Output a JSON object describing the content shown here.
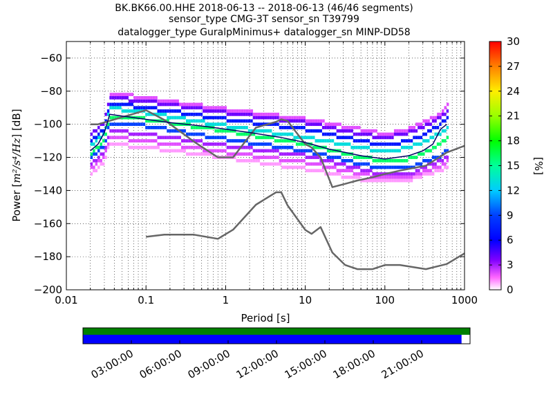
{
  "chart_data": {
    "type": "heatmap",
    "title_lines": [
      "BK.BK66.00.HHE   2018-06-13 -- 2018-06-13  (46/46 segments)",
      "sensor_type CMG-3T sensor_sn T39799",
      "datalogger_type GuralpMinimus+ datalogger_sn MINP-DD58"
    ],
    "xlabel": "Period [s]",
    "ylabel_prefix": "Power [",
    "ylabel_math": "m²/s⁴/Hz",
    "ylabel_suffix": "] [dB]",
    "x_scale": "log",
    "xlim": [
      0.01,
      1000
    ],
    "ylim": [
      -200,
      -50
    ],
    "x_ticks": [
      {
        "value": 0.01,
        "label": "0.01"
      },
      {
        "value": 0.1,
        "label": "0.1"
      },
      {
        "value": 1,
        "label": "1"
      },
      {
        "value": 10,
        "label": "10"
      },
      {
        "value": 100,
        "label": "100"
      },
      {
        "value": 1000,
        "label": "1000"
      }
    ],
    "y_ticks": [
      {
        "value": -60,
        "label": "−60"
      },
      {
        "value": -80,
        "label": "−80"
      },
      {
        "value": -100,
        "label": "−100"
      },
      {
        "value": -120,
        "label": "−120"
      },
      {
        "value": -140,
        "label": "−140"
      },
      {
        "value": -160,
        "label": "−160"
      },
      {
        "value": -180,
        "label": "−180"
      },
      {
        "value": -200,
        "label": "−200"
      }
    ],
    "grid": true,
    "colorbar": {
      "label": "[%]",
      "range": [
        0,
        30
      ],
      "ticks": [
        {
          "value": 0,
          "label": "0"
        },
        {
          "value": 3,
          "label": "3"
        },
        {
          "value": 6,
          "label": "6"
        },
        {
          "value": 9,
          "label": "9"
        },
        {
          "value": 12,
          "label": "12"
        },
        {
          "value": 15,
          "label": "15"
        },
        {
          "value": 18,
          "label": "18"
        },
        {
          "value": 21,
          "label": "21"
        },
        {
          "value": 24,
          "label": "24"
        },
        {
          "value": 27,
          "label": "27"
        },
        {
          "value": 30,
          "label": "30"
        }
      ]
    },
    "series": [
      {
        "key": "nhnm",
        "color": "#666666",
        "x": [
          0.02,
          0.025,
          0.1,
          0.17,
          0.4,
          0.8,
          1.24,
          2.4,
          4.3,
          5,
          6,
          10,
          12,
          15.6,
          21.9,
          31.6,
          45,
          70,
          101,
          154,
          328,
          600,
          1000
        ],
        "y": [
          -100,
          -100,
          -91.5,
          -97.4,
          -110.5,
          -120,
          -120,
          -102,
          -98.5,
          -97,
          -98,
          -112,
          -114,
          -120,
          -138,
          -136,
          -134,
          -132,
          -130,
          -128,
          -125,
          -117,
          -113
        ]
      },
      {
        "key": "nlnm",
        "color": "#666666",
        "x": [
          0.1,
          0.17,
          0.4,
          0.8,
          1.24,
          2.4,
          4.3,
          5,
          6,
          10,
          12,
          15.6,
          21.9,
          31.6,
          45,
          70,
          101,
          154,
          328,
          600,
          1000
        ],
        "y": [
          -168,
          -166.7,
          -166.7,
          -169.2,
          -163.7,
          -148.6,
          -141.1,
          -141.1,
          -149,
          -163.8,
          -166.2,
          -162.1,
          -177.5,
          -185,
          -187.5,
          -187.5,
          -185,
          -185,
          -187.5,
          -184.4,
          -178
        ]
      },
      {
        "key": "mode",
        "color": "#000066",
        "x": [
          0.02,
          0.025,
          0.03,
          0.035,
          0.05,
          0.1,
          0.2,
          0.5,
          1,
          2,
          5,
          10,
          20,
          50,
          100,
          200,
          300,
          400,
          500,
          600
        ],
        "y": [
          -116,
          -112,
          -105,
          -94,
          -95,
          -97,
          -99,
          -101,
          -103,
          -105,
          -108,
          -111,
          -115,
          -119,
          -121,
          -119,
          -116,
          -112,
          -103,
          -100
        ]
      }
    ],
    "density_bands": [
      {
        "x": [
          0.02,
          0.03,
          0.035,
          0.1,
          1,
          10,
          50,
          100,
          200,
          300,
          500,
          600
        ],
        "y": [
          -121,
          -113,
          -99,
          -101,
          -109,
          -116,
          -124,
          -127,
          -127,
          -123,
          -119,
          -116
        ],
        "pct": 9
      },
      {
        "x": [
          0.02,
          0.03,
          0.035,
          0.1,
          1,
          10,
          50,
          100,
          200,
          300,
          500,
          600
        ],
        "y": [
          -118,
          -110,
          -95,
          -97,
          -104,
          -112,
          -120,
          -122,
          -121,
          -118,
          -112,
          -109
        ],
        "pct": 16
      },
      {
        "x": [
          0.02,
          0.03,
          0.035,
          0.1,
          1,
          10,
          50,
          100,
          200,
          300,
          500,
          600
        ],
        "y": [
          -113,
          -106,
          -90,
          -93,
          -101,
          -108,
          -114,
          -117,
          -114,
          -111,
          -105,
          -103
        ],
        "pct": 13
      },
      {
        "x": [
          0.02,
          0.03,
          0.035,
          0.1,
          1,
          10,
          50,
          100,
          200,
          300,
          500,
          600
        ],
        "y": [
          -110,
          -103,
          -87,
          -90,
          -97,
          -103,
          -110,
          -113,
          -110,
          -107,
          -100,
          -97
        ],
        "pct": 7
      },
      {
        "x": [
          0.02,
          0.03,
          0.035,
          0.1,
          1,
          10,
          50,
          100,
          200,
          300,
          500,
          600
        ],
        "y": [
          -107,
          -99,
          -84,
          -86,
          -93,
          -99,
          -106,
          -108,
          -105,
          -102,
          -96,
          -93
        ],
        "pct": 4
      },
      {
        "x": [
          0.02,
          0.03,
          0.035,
          0.1,
          1,
          10,
          50,
          100,
          200,
          300,
          500,
          600
        ],
        "y": [
          -124,
          -117,
          -104,
          -106,
          -113,
          -119,
          -127,
          -131,
          -131,
          -126,
          -122,
          -120
        ],
        "pct": 3
      },
      {
        "x": [
          0.02,
          0.03,
          0.035,
          0.1,
          1,
          10,
          50,
          100,
          200,
          300,
          500,
          600
        ],
        "y": [
          -127,
          -120,
          -108,
          -110,
          -117,
          -123,
          -130,
          -133,
          -133,
          -129,
          -125,
          -123
        ],
        "pct": 2
      },
      {
        "x": [
          0.02,
          0.03,
          0.035,
          0.1,
          1,
          10,
          50,
          100,
          200,
          300,
          500,
          600
        ],
        "y": [
          -130,
          -123,
          -112,
          -114,
          -120,
          -127,
          -133,
          -135,
          -134,
          -131,
          -128,
          -126
        ],
        "pct": 1
      },
      {
        "x": [
          0.035,
          0.1,
          1,
          10,
          50,
          100,
          200,
          500,
          600
        ],
        "y": [
          -81,
          -84,
          -91,
          -97,
          -103,
          -106,
          -103,
          -94,
          -89
        ],
        "pct": 2
      }
    ],
    "timeline": {
      "data_coverage_fraction": 0.978,
      "gap_coverage_fraction": 1.0,
      "data_color": "#0000ff",
      "gap_color": "#008000",
      "labels": [
        "03:00:00",
        "06:00:00",
        "09:00:00",
        "12:00:00",
        "15:00:00",
        "18:00:00",
        "21:00:00"
      ],
      "label_hours": [
        3,
        6,
        9,
        12,
        15,
        18,
        21
      ],
      "span_hours": 24
    }
  }
}
